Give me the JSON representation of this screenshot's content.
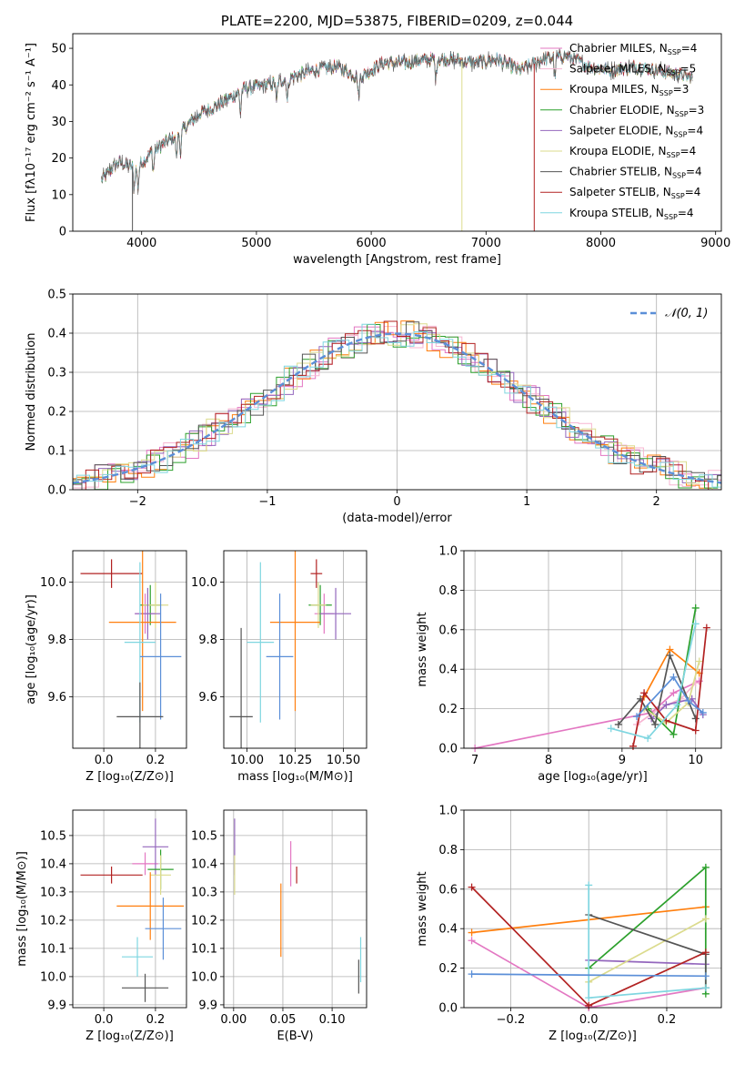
{
  "page_title": "PLATE=2200, MJD=53875, FIBERID=0209, z=0.044",
  "colors": {
    "chabrier_miles": "#e377c2",
    "salpeter_miles": "#f7b6d2",
    "kroupa_miles": "#ff7f0e",
    "chabrier_elodie": "#2ca02c",
    "salpeter_elodie": "#9467bd",
    "kroupa_elodie": "#dbdb8d",
    "chabrier_stelib": "#555555",
    "salpeter_stelib": "#b22222",
    "kroupa_stelib": "#7fd6e0",
    "gaussian": "#5b8fd8"
  },
  "chart_data": [
    {
      "id": "spectrum",
      "type": "line",
      "title": "PLATE=2200, MJD=53875, FIBERID=0209, z=0.044",
      "xlabel": "wavelength [Angstrom, rest frame]",
      "ylabel": "Flux [fλ10⁻¹⁷ erg cm⁻² s⁻¹ A⁻¹]",
      "xlim": [
        3400,
        9050
      ],
      "ylim": [
        0,
        54
      ],
      "xticks": [
        4000,
        5000,
        6000,
        7000,
        8000,
        9000
      ],
      "yticks": [
        0,
        10,
        20,
        30,
        40,
        50
      ],
      "grid": false,
      "legend_position": "top-right",
      "wavelength_range": [
        3650,
        8800
      ],
      "continuum": {
        "x": [
          3650,
          3800,
          3950,
          4100,
          4300,
          4500,
          4700,
          4900,
          5100,
          5300,
          5500,
          5700,
          5900,
          6100,
          6300,
          6500,
          6700,
          6900,
          7100,
          7300,
          7500,
          7700,
          7900,
          8100,
          8300,
          8500,
          8800
        ],
        "y": [
          14,
          19,
          17,
          22,
          26,
          32,
          35,
          39,
          40,
          42,
          44,
          45,
          42,
          46,
          46,
          47,
          47,
          46,
          47,
          44,
          47,
          48,
          45,
          44,
          45,
          44,
          42
        ]
      },
      "series": [
        {
          "name": "Chabrier MILES, N_SSP=4",
          "legend": "Chabrier MILES, N",
          "sub": "SSP",
          "suffix": "=4",
          "color": "#e377c2"
        },
        {
          "name": "Salpeter MILES, N_SSP=5",
          "legend": "Salpeter MILES, N",
          "sub": "SSP",
          "suffix": "=5",
          "color": "#f7b6d2"
        },
        {
          "name": "Kroupa MILES, N_SSP=3",
          "legend": "Kroupa MILES, N",
          "sub": "SSP",
          "suffix": "=3",
          "color": "#ff7f0e"
        },
        {
          "name": "Chabrier ELODIE, N_SSP=3",
          "legend": "Chabrier ELODIE, N",
          "sub": "SSP",
          "suffix": "=3",
          "color": "#2ca02c"
        },
        {
          "name": "Salpeter ELODIE, N_SSP=4",
          "legend": "Salpeter ELODIE, N",
          "sub": "SSP",
          "suffix": "=4",
          "color": "#9467bd"
        },
        {
          "name": "Kroupa ELODIE, N_SSP=4",
          "legend": "Kroupa ELODIE, N",
          "sub": "SSP",
          "suffix": "=4",
          "color": "#dbdb8d"
        },
        {
          "name": "Chabrier STELIB, N_SSP=4",
          "legend": "Chabrier STELIB, N",
          "sub": "SSP",
          "suffix": "=4",
          "color": "#555555"
        },
        {
          "name": "Salpeter STELIB, N_SSP=4",
          "legend": "Salpeter STELIB, N",
          "sub": "SSP",
          "suffix": "=4",
          "color": "#b22222"
        },
        {
          "name": "Kroupa STELIB, N_SSP=4",
          "legend": "Kroupa STELIB, N",
          "sub": "SSP",
          "suffix": "=4",
          "color": "#7fd6e0"
        }
      ],
      "dropouts": [
        {
          "x": 3920,
          "color": "#555555"
        },
        {
          "x": 6790,
          "color": "#dbdb8d"
        },
        {
          "x": 7420,
          "color": "#b22222"
        }
      ]
    },
    {
      "id": "residuals",
      "type": "histogram",
      "xlabel": "(data-model)/error",
      "ylabel": "Normed distribution",
      "xlim": [
        -2.5,
        2.5
      ],
      "ylim": [
        0,
        0.5
      ],
      "xticks": [
        -2,
        -1,
        0,
        1,
        2
      ],
      "yticks": [
        0,
        0.1,
        0.2,
        0.3,
        0.4,
        0.5
      ],
      "grid": true,
      "bin_width": 0.1,
      "legend": "𝒩(0, 1)",
      "legend_position": "top-right"
    },
    {
      "id": "age_vs_Z",
      "type": "scatter",
      "xlabel": "Z [log₁₀(Z/Z⊙)]",
      "ylabel": "age  [log₁₀(age/yr)]",
      "xlim": [
        -0.12,
        0.32
      ],
      "ylim": [
        9.42,
        10.11
      ],
      "xticks": [
        0.0,
        0.2
      ],
      "yticks": [
        9.6,
        9.8,
        10.0
      ],
      "grid": true,
      "points": [
        {
          "x": 0.03,
          "y": 10.03,
          "xerr": 0.12,
          "yerr": 0.05,
          "color": "#b22222"
        },
        {
          "x": 0.16,
          "y": 9.89,
          "xerr": 0.04,
          "yerr": 0.07,
          "color": "#e377c2"
        },
        {
          "x": 0.18,
          "y": 9.92,
          "xerr": 0.04,
          "yerr": 0.07,
          "color": "#2ca02c"
        },
        {
          "x": 0.2,
          "y": 9.92,
          "xerr": 0.05,
          "yerr": 0.08,
          "color": "#dbdb8d"
        },
        {
          "x": 0.17,
          "y": 9.89,
          "xerr": 0.05,
          "yerr": 0.09,
          "color": "#9467bd"
        },
        {
          "x": 0.15,
          "y": 9.86,
          "xerr": 0.13,
          "yerr": 0.31,
          "color": "#ff7f0e"
        },
        {
          "x": 0.14,
          "y": 9.79,
          "xerr": 0.06,
          "yerr": 0.28,
          "color": "#7fd6e0"
        },
        {
          "x": 0.22,
          "y": 9.74,
          "xerr": 0.08,
          "yerr": 0.22,
          "color": "#5b8fd8"
        },
        {
          "x": 0.14,
          "y": 9.53,
          "xerr": 0.09,
          "yerr": 0.12,
          "color": "#555555"
        }
      ]
    },
    {
      "id": "age_vs_mass",
      "type": "scatter",
      "xlabel": "mass [log₁₀(M/M⊙)]",
      "ylabel": "",
      "xlim": [
        9.88,
        10.62
      ],
      "ylim": [
        9.42,
        10.11
      ],
      "xticks": [
        10.0,
        10.25,
        10.5
      ],
      "yticks": [
        9.6,
        9.8,
        10.0
      ],
      "grid": true,
      "points": [
        {
          "x": 10.36,
          "y": 10.03,
          "xerr": 0.03,
          "yerr": 0.05,
          "color": "#b22222"
        },
        {
          "x": 10.4,
          "y": 9.89,
          "xerr": 0.05,
          "yerr": 0.07,
          "color": "#e377c2"
        },
        {
          "x": 10.38,
          "y": 9.92,
          "xerr": 0.06,
          "yerr": 0.07,
          "color": "#2ca02c"
        },
        {
          "x": 10.37,
          "y": 9.92,
          "xerr": 0.04,
          "yerr": 0.08,
          "color": "#dbdb8d"
        },
        {
          "x": 10.46,
          "y": 9.89,
          "xerr": 0.08,
          "yerr": 0.09,
          "color": "#9467bd"
        },
        {
          "x": 10.25,
          "y": 9.86,
          "xerr": 0.13,
          "yerr": 0.31,
          "color": "#ff7f0e"
        },
        {
          "x": 10.07,
          "y": 9.79,
          "xerr": 0.07,
          "yerr": 0.28,
          "color": "#7fd6e0"
        },
        {
          "x": 10.17,
          "y": 9.74,
          "xerr": 0.07,
          "yerr": 0.22,
          "color": "#5b8fd8"
        },
        {
          "x": 9.97,
          "y": 9.53,
          "xerr": 0.06,
          "yerr": 0.31,
          "color": "#555555"
        }
      ]
    },
    {
      "id": "weight_vs_age",
      "type": "line",
      "xlabel": "age  [log₁₀(age/yr)]",
      "ylabel": "mass weight",
      "xlim": [
        6.85,
        10.35
      ],
      "ylim": [
        0,
        1.0
      ],
      "xticks": [
        7,
        8,
        9,
        10
      ],
      "yticks": [
        0.0,
        0.2,
        0.4,
        0.6,
        0.8,
        1.0
      ],
      "grid": true,
      "series": [
        {
          "color": "#e377c2",
          "x": [
            7.0,
            9.4,
            9.7,
            10.05
          ],
          "y": [
            0.0,
            0.18,
            0.28,
            0.34
          ]
        },
        {
          "color": "#f7b6d2",
          "x": [
            9.2,
            9.5,
            9.8,
            10.0
          ],
          "y": [
            0.12,
            0.2,
            0.25,
            0.33
          ]
        },
        {
          "color": "#ff7f0e",
          "x": [
            9.3,
            9.65,
            10.05
          ],
          "y": [
            0.26,
            0.5,
            0.38
          ]
        },
        {
          "color": "#2ca02c",
          "x": [
            9.35,
            9.7,
            10.0
          ],
          "y": [
            0.2,
            0.07,
            0.71
          ]
        },
        {
          "color": "#9467bd",
          "x": [
            9.4,
            9.6,
            9.95,
            10.1
          ],
          "y": [
            0.15,
            0.22,
            0.25,
            0.17
          ]
        },
        {
          "color": "#dbdb8d",
          "x": [
            9.3,
            9.6,
            9.9,
            10.05
          ],
          "y": [
            0.2,
            0.13,
            0.23,
            0.44
          ]
        },
        {
          "color": "#555555",
          "x": [
            8.95,
            9.25,
            9.45,
            9.65,
            10.0
          ],
          "y": [
            0.12,
            0.25,
            0.12,
            0.47,
            0.15
          ]
        },
        {
          "color": "#b22222",
          "x": [
            9.15,
            9.3,
            9.6,
            10.0,
            10.15
          ],
          "y": [
            0.01,
            0.28,
            0.14,
            0.09,
            0.61
          ]
        },
        {
          "color": "#7fd6e0",
          "x": [
            8.85,
            9.35,
            9.75,
            10.0
          ],
          "y": [
            0.1,
            0.05,
            0.22,
            0.63
          ]
        },
        {
          "color": "#5b8fd8",
          "x": [
            9.2,
            9.7,
            9.9,
            10.1
          ],
          "y": [
            0.16,
            0.36,
            0.24,
            0.18
          ]
        }
      ]
    },
    {
      "id": "mass_vs_Z",
      "type": "scatter",
      "xlabel": "Z [log₁₀(Z/Z⊙)]",
      "ylabel": "mass [log₁₀(M/M⊙)]",
      "xlim": [
        -0.12,
        0.32
      ],
      "ylim": [
        9.89,
        10.59
      ],
      "xticks": [
        0.0,
        0.2
      ],
      "yticks": [
        9.9,
        10.0,
        10.1,
        10.2,
        10.3,
        10.4,
        10.5
      ],
      "grid": true,
      "points": [
        {
          "x": 0.03,
          "y": 10.36,
          "xerr": 0.12,
          "yerr": 0.03,
          "color": "#b22222"
        },
        {
          "x": 0.16,
          "y": 10.4,
          "xerr": 0.05,
          "yerr": 0.04,
          "color": "#e377c2"
        },
        {
          "x": 0.2,
          "y": 10.46,
          "xerr": 0.05,
          "yerr": 0.1,
          "color": "#9467bd"
        },
        {
          "x": 0.22,
          "y": 10.38,
          "xerr": 0.05,
          "yerr": 0.07,
          "color": "#2ca02c"
        },
        {
          "x": 0.22,
          "y": 10.36,
          "xerr": 0.04,
          "yerr": 0.07,
          "color": "#dbdb8d"
        },
        {
          "x": 0.18,
          "y": 10.25,
          "xerr": 0.13,
          "yerr": 0.12,
          "color": "#ff7f0e"
        },
        {
          "x": 0.23,
          "y": 10.17,
          "xerr": 0.07,
          "yerr": 0.11,
          "color": "#5b8fd8"
        },
        {
          "x": 0.13,
          "y": 10.07,
          "xerr": 0.06,
          "yerr": 0.07,
          "color": "#7fd6e0"
        },
        {
          "x": 0.16,
          "y": 9.96,
          "xerr": 0.09,
          "yerr": 0.05,
          "color": "#555555"
        }
      ]
    },
    {
      "id": "mass_vs_EBV",
      "type": "scatter",
      "xlabel": "E(B-V)",
      "ylabel": "",
      "xlim": [
        -0.01,
        0.135
      ],
      "ylim": [
        9.89,
        10.59
      ],
      "xticks": [
        0.0,
        0.05,
        0.1
      ],
      "yticks": [
        9.9,
        10.0,
        10.1,
        10.2,
        10.3,
        10.4,
        10.5
      ],
      "grid": true,
      "points": [
        {
          "x": 0.001,
          "y": 10.46,
          "xerr": 0.0,
          "yerr": 0.1,
          "color": "#9467bd"
        },
        {
          "x": 0.001,
          "y": 10.36,
          "xerr": 0.0,
          "yerr": 0.07,
          "color": "#dbdb8d"
        },
        {
          "x": 0.058,
          "y": 10.4,
          "xerr": 0.0,
          "yerr": 0.08,
          "color": "#e377c2"
        },
        {
          "x": 0.064,
          "y": 10.36,
          "xerr": 0.0,
          "yerr": 0.03,
          "color": "#b22222"
        },
        {
          "x": 0.048,
          "y": 10.2,
          "xerr": 0.0,
          "yerr": 0.13,
          "color": "#ff7f0e"
        },
        {
          "x": 0.129,
          "y": 10.06,
          "xerr": 0.0,
          "yerr": 0.08,
          "color": "#7fd6e0"
        },
        {
          "x": 0.127,
          "y": 10.0,
          "xerr": 0.0,
          "yerr": 0.06,
          "color": "#555555"
        }
      ]
    },
    {
      "id": "weight_vs_Z",
      "type": "line",
      "xlabel": "Z [log₁₀(Z/Z⊙)]",
      "ylabel": "mass weight",
      "xlim": [
        -0.32,
        0.34
      ],
      "ylim": [
        0,
        1.0
      ],
      "xticks": [
        -0.2,
        0.0,
        0.2
      ],
      "yticks": [
        0.0,
        0.2,
        0.4,
        0.6,
        0.8,
        1.0
      ],
      "grid": true,
      "series": [
        {
          "color": "#e377c2",
          "x": [
            -0.3,
            0.0,
            0.3
          ],
          "y": [
            0.34,
            0.0,
            0.1
          ]
        },
        {
          "color": "#ff7f0e",
          "x": [
            -0.3,
            0.3
          ],
          "y": [
            0.38,
            0.51
          ]
        },
        {
          "color": "#2ca02c",
          "x": [
            0.0,
            0.3,
            0.3
          ],
          "y": [
            0.2,
            0.71,
            0.07
          ]
        },
        {
          "color": "#9467bd",
          "x": [
            0.0,
            0.3
          ],
          "y": [
            0.24,
            0.22
          ]
        },
        {
          "color": "#dbdb8d",
          "x": [
            0.0,
            0.3
          ],
          "y": [
            0.13,
            0.45
          ]
        },
        {
          "color": "#555555",
          "x": [
            0.0,
            0.3,
            0.3
          ],
          "y": [
            0.47,
            0.27,
            0.1
          ]
        },
        {
          "color": "#b22222",
          "x": [
            -0.3,
            0.0,
            0.3
          ],
          "y": [
            0.61,
            0.01,
            0.28
          ]
        },
        {
          "color": "#7fd6e0",
          "x": [
            0.0,
            0.0,
            0.3
          ],
          "y": [
            0.62,
            0.05,
            0.1
          ]
        },
        {
          "color": "#5b8fd8",
          "x": [
            -0.3,
            0.3
          ],
          "y": [
            0.17,
            0.16
          ]
        }
      ]
    }
  ]
}
